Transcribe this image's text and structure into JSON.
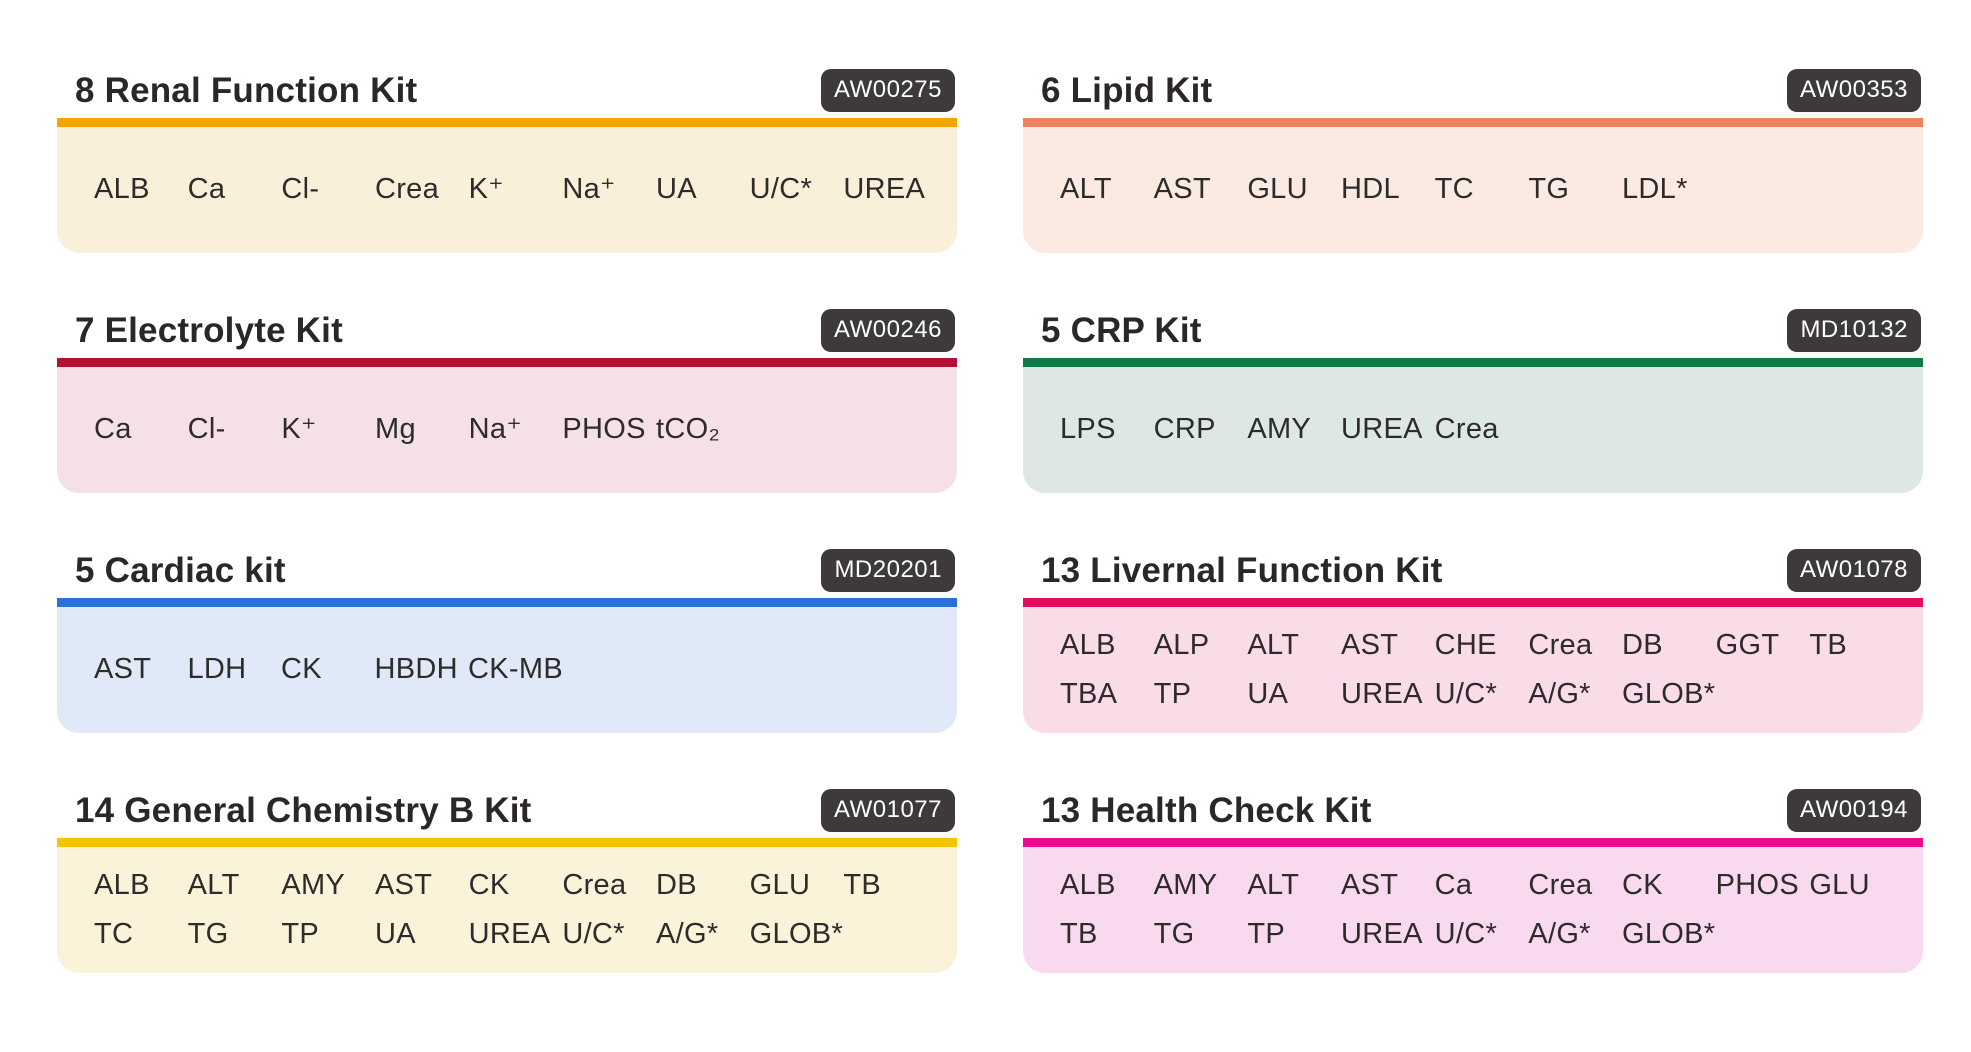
{
  "page": {
    "background_color": "#ffffff",
    "text_color": "#2b2726"
  },
  "badge": {
    "bg_color": "#3e3a39",
    "text_color": "#ffffff"
  },
  "kits": [
    {
      "title": "8 Renal Function Kit",
      "code": "AW00275",
      "bar_color": "#f5a402",
      "bg_color": "#faf0da",
      "test_rows": [
        [
          "ALB",
          "Ca",
          "Cl-",
          "Crea",
          "K⁺",
          "Na⁺",
          "UA",
          "U/C*",
          "UREA"
        ]
      ]
    },
    {
      "title": "6 Lipid Kit",
      "code": "AW00353",
      "bar_color": "#ef835f",
      "bg_color": "#fbeae2",
      "test_rows": [
        [
          "ALT",
          "AST",
          "GLU",
          "HDL",
          "TC",
          "TG",
          "LDL*"
        ]
      ]
    },
    {
      "title": "7 Electrolyte Kit",
      "code": "AW00246",
      "bar_color": "#b11232",
      "bg_color": "#f5e0e6",
      "test_rows": [
        [
          "Ca",
          "Cl-",
          "K⁺",
          "Mg",
          "Na⁺",
          "PHOS",
          "tCO₂"
        ]
      ]
    },
    {
      "title": "5 CRP Kit",
      "code": "MD10132",
      "bar_color": "#0e7c45",
      "bg_color": "#dce8e1",
      "test_rows": [
        [
          "LPS",
          "CRP",
          "AMY",
          "UREA",
          "Crea"
        ]
      ]
    },
    {
      "title": "5 Cardiac kit",
      "code": "MD20201",
      "bar_color": "#2a70d8",
      "bg_color": "#dfe9f8",
      "test_rows": [
        [
          "AST",
          "LDH",
          "CK",
          "HBDH",
          "CK-MB"
        ]
      ]
    },
    {
      "title": "13 Livernal Function Kit",
      "code": "AW01078",
      "bar_color": "#e40e5e",
      "bg_color": "#fadce8",
      "test_rows": [
        [
          "ALB",
          "ALP",
          "ALT",
          "AST",
          "CHE",
          "Crea",
          "DB",
          "GGT",
          "TB"
        ],
        [
          "TBA",
          "TP",
          "UA",
          "UREA",
          "U/C*",
          "A/G*",
          "GLOB*"
        ]
      ]
    },
    {
      "title": "14 General Chemistry B Kit",
      "code": "AW01077",
      "bar_color": "#f2c402",
      "bg_color": "#faf3d9",
      "test_rows": [
        [
          "ALB",
          "ALT",
          "AMY",
          "AST",
          "CK",
          "Crea",
          "DB",
          "GLU",
          "TB"
        ],
        [
          "TC",
          "TG",
          "TP",
          "UA",
          "UREA",
          "U/C*",
          "A/G*",
          "GLOB*"
        ]
      ]
    },
    {
      "title": "13 Health Check Kit",
      "code": "AW00194",
      "bar_color": "#eb0a8c",
      "bg_color": "#f9d9ef",
      "test_rows": [
        [
          "ALB",
          "AMY",
          "ALT",
          "AST",
          "Ca",
          "Crea",
          "CK",
          "PHOS",
          "GLU"
        ],
        [
          "TB",
          "TG",
          "TP",
          "UREA",
          "U/C*",
          "A/G*",
          "GLOB*"
        ]
      ]
    }
  ]
}
